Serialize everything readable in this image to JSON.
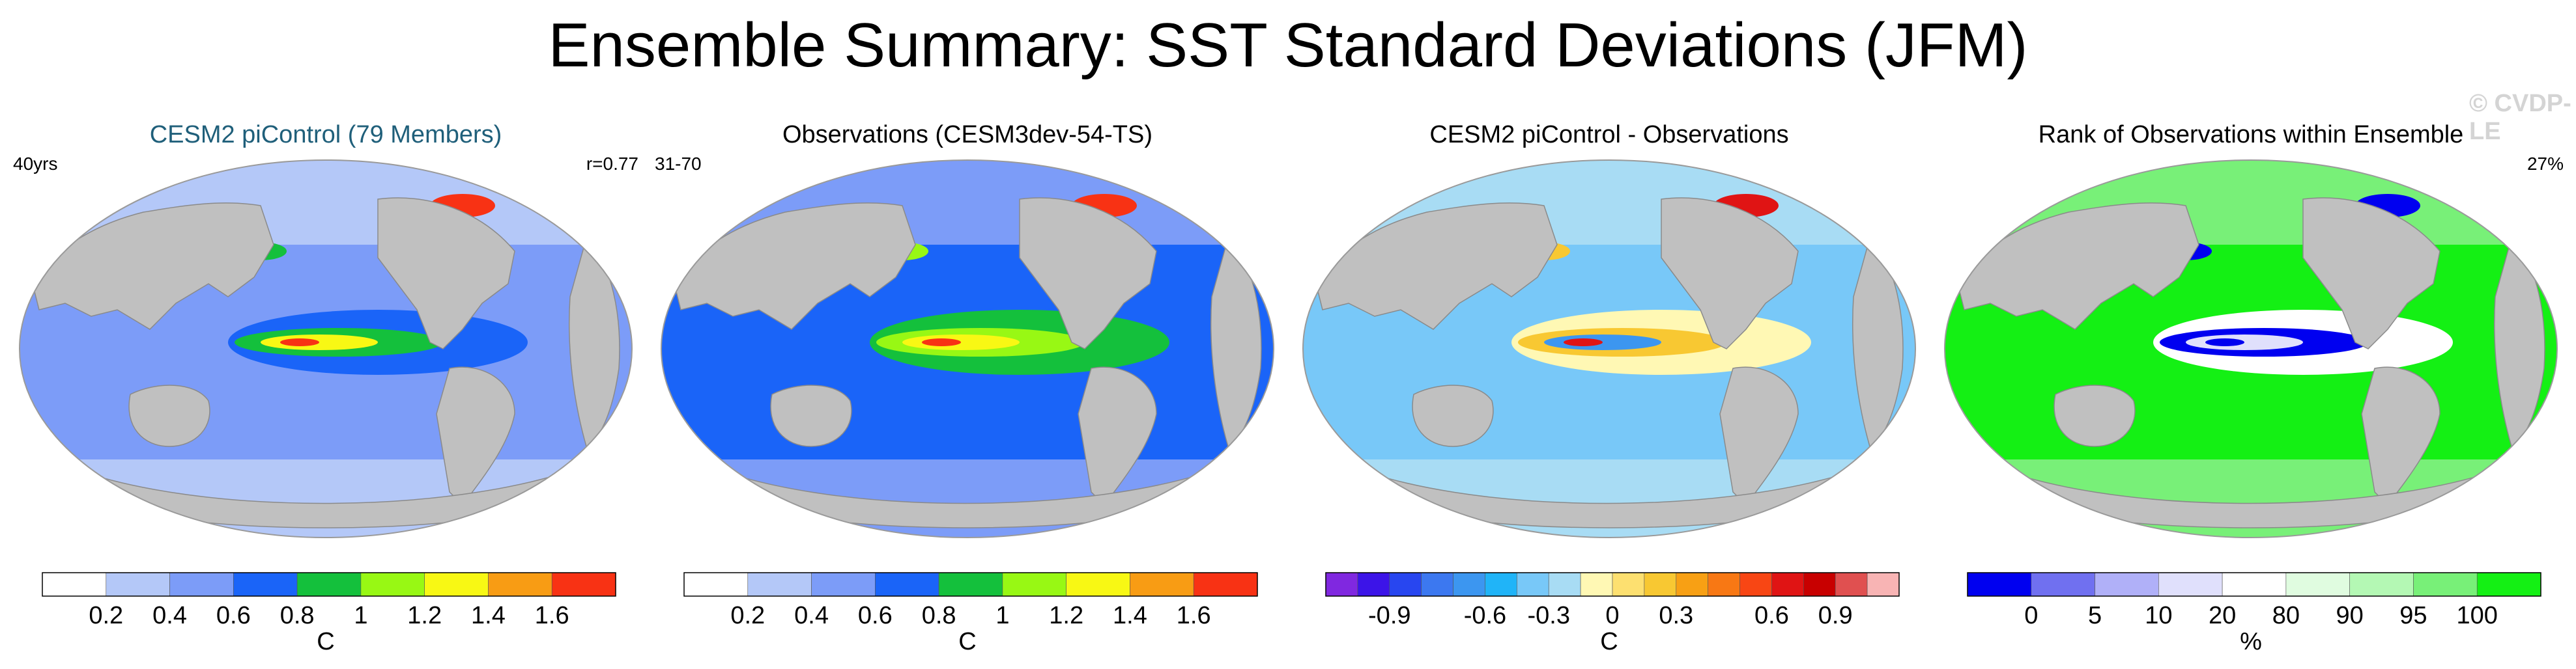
{
  "title": "Ensemble Summary: SST Standard Deviations (JFM)",
  "watermark": "© CVDP-LE",
  "panels": [
    {
      "title": "CESM2 piControl (79 Members)",
      "title_color": "#1f5f7a",
      "left_label": "40yrs",
      "right_label": "r=0.77",
      "unit": "C",
      "colorbar": {
        "colors": [
          "#ffffff",
          "#b4c8f8",
          "#7c9cf8",
          "#1a64f8",
          "#14c03c",
          "#98f814",
          "#f8f814",
          "#f89c14",
          "#f83214"
        ],
        "ticks": [
          "0.2",
          "0.4",
          "0.6",
          "0.8",
          "1",
          "1.2",
          "1.4",
          "1.6"
        ]
      },
      "map_colors": {
        "ocean": "#7c9cf8",
        "band": "#b4c8f8",
        "core": "#1a64f8",
        "hot": "#14c03c",
        "peak": "#f8f814",
        "max": "#f83214"
      }
    },
    {
      "title": "Observations (CESM3dev-54-TS)",
      "title_color": "#000000",
      "left_label": "31-70",
      "right_label": "",
      "unit": "C",
      "colorbar": {
        "colors": [
          "#ffffff",
          "#b4c8f8",
          "#7c9cf8",
          "#1a64f8",
          "#14c03c",
          "#98f814",
          "#f8f814",
          "#f89c14",
          "#f83214"
        ],
        "ticks": [
          "0.2",
          "0.4",
          "0.6",
          "0.8",
          "1",
          "1.2",
          "1.4",
          "1.6"
        ]
      },
      "map_colors": {
        "ocean": "#1a64f8",
        "band": "#7c9cf8",
        "core": "#14c03c",
        "hot": "#98f814",
        "peak": "#f8f814",
        "max": "#f83214"
      }
    },
    {
      "title": "CESM2 piControl - Observations",
      "title_color": "#000000",
      "left_label": "",
      "right_label": "",
      "unit": "C",
      "colorbar": {
        "colors": [
          "#8028e0",
          "#3c14e8",
          "#2846f0",
          "#3c78f0",
          "#3c96f0",
          "#20b4f8",
          "#78c8f8",
          "#a8dcf4",
          "#fff8b4",
          "#fde070",
          "#f8c832",
          "#f8a014",
          "#f87814",
          "#f84614",
          "#e01414",
          "#c80000",
          "#e05050",
          "#f8b4b4"
        ],
        "ticks": [
          "-0.9",
          "-0.6",
          "-0.3",
          "0",
          "0.3",
          "0.6",
          "0.9"
        ]
      },
      "map_colors": {
        "ocean": "#78c8f8",
        "band": "#a8dcf4",
        "core": "#fff8b4",
        "hot": "#f8c832",
        "peak": "#3c96f0",
        "max": "#e01414"
      }
    },
    {
      "title": "Rank of Observations within Ensemble",
      "title_color": "#000000",
      "left_label": "",
      "right_label": "27%",
      "unit": "%",
      "colorbar": {
        "colors": [
          "#0000f0",
          "#7070f0",
          "#b0b0f8",
          "#e0e0fc",
          "#ffffff",
          "#e0fce0",
          "#b4f8b4",
          "#78f078",
          "#14f014"
        ],
        "ticks": [
          "0",
          "5",
          "10",
          "20",
          "80",
          "90",
          "95",
          "100"
        ]
      },
      "map_colors": {
        "ocean": "#14f014",
        "band": "#78f078",
        "core": "#ffffff",
        "hot": "#0000f0",
        "peak": "#e0e0fc",
        "max": "#0000f0"
      }
    }
  ]
}
